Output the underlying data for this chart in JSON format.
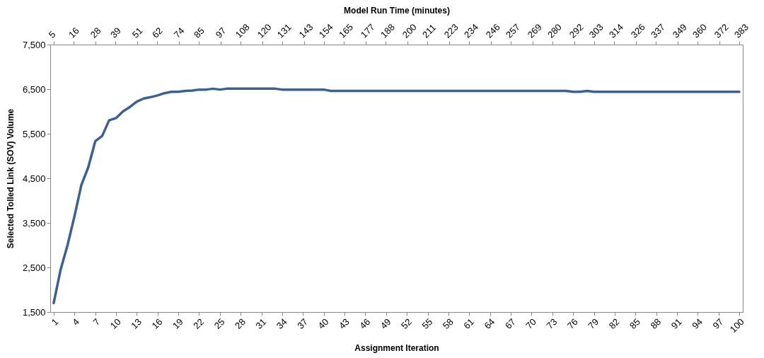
{
  "chart_data": {
    "type": "line",
    "xlabel": "Assignment Iteration",
    "ylabel": "Selected Tolled Link (SOV) Volume",
    "x2label": "Model Run Time (minutes)",
    "categories": [
      "1",
      null,
      null,
      "4",
      null,
      null,
      "7",
      null,
      null,
      "10",
      null,
      null,
      "13",
      null,
      null,
      "16",
      null,
      null,
      "19",
      null,
      null,
      "22",
      null,
      null,
      "25",
      null,
      null,
      "28",
      null,
      null,
      "31",
      null,
      null,
      "34",
      null,
      null,
      "37",
      null,
      null,
      "40",
      null,
      null,
      "43",
      null,
      null,
      "46",
      null,
      null,
      "49",
      null,
      null,
      "52",
      null,
      null,
      "55",
      null,
      null,
      "58",
      null,
      null,
      "61",
      null,
      null,
      "64",
      null,
      null,
      "67",
      null,
      null,
      "70",
      null,
      null,
      "73",
      null,
      null,
      "76",
      null,
      null,
      "79",
      null,
      null,
      "82",
      null,
      null,
      "85",
      null,
      null,
      "88",
      null,
      null,
      "91",
      null,
      null,
      "94",
      null,
      null,
      "97",
      null,
      null,
      "100"
    ],
    "series": [
      {
        "color": "#3b6096",
        "values": [
          1700,
          2450,
          3000,
          3650,
          4350,
          4750,
          5330,
          5450,
          5800,
          5850,
          6000,
          6100,
          6220,
          6290,
          6320,
          6360,
          6410,
          6440,
          6440,
          6460,
          6470,
          6490,
          6490,
          6510,
          6490,
          6510,
          6510,
          6510,
          6510,
          6510,
          6510,
          6510,
          6510,
          6490,
          6490,
          6490,
          6490,
          6490,
          6490,
          6490,
          6460,
          6460,
          6460,
          6460,
          6460,
          6460,
          6460,
          6460,
          6460,
          6460,
          6460,
          6460,
          6460,
          6460,
          6460,
          6460,
          6460,
          6460,
          6460,
          6460,
          6460,
          6460,
          6460,
          6460,
          6460,
          6460,
          6460,
          6460,
          6460,
          6460,
          6460,
          6460,
          6460,
          6460,
          6460,
          6440,
          6440,
          6460,
          6440,
          6440,
          6440,
          6440,
          6440,
          6440,
          6440,
          6440,
          6440,
          6440,
          6440,
          6440,
          6440,
          6440,
          6440,
          6440,
          6440,
          6440,
          6440,
          6440,
          6440,
          6440
        ]
      }
    ],
    "ylim": [
      1500,
      7500
    ],
    "yticks": [
      {
        "value": 1500,
        "label": "1,500"
      },
      {
        "value": 2500,
        "label": "2,500"
      },
      {
        "value": 3500,
        "label": "3,500"
      },
      {
        "value": 4500,
        "label": "4,500"
      },
      {
        "value": 5500,
        "label": "5,500"
      },
      {
        "value": 6500,
        "label": "6,500"
      },
      {
        "value": 7500,
        "label": "7,500"
      }
    ],
    "x2lim": [
      3.1,
      384.9
    ],
    "x2ticks": [
      5,
      16,
      28,
      39,
      51,
      62,
      74,
      85,
      97,
      108,
      120,
      131,
      143,
      154,
      165,
      177,
      188,
      200,
      211,
      223,
      234,
      246,
      257,
      269,
      280,
      292,
      303,
      314,
      326,
      337,
      349,
      360,
      372,
      383
    ],
    "grid": false,
    "marker": "none",
    "line_style": "solid"
  }
}
